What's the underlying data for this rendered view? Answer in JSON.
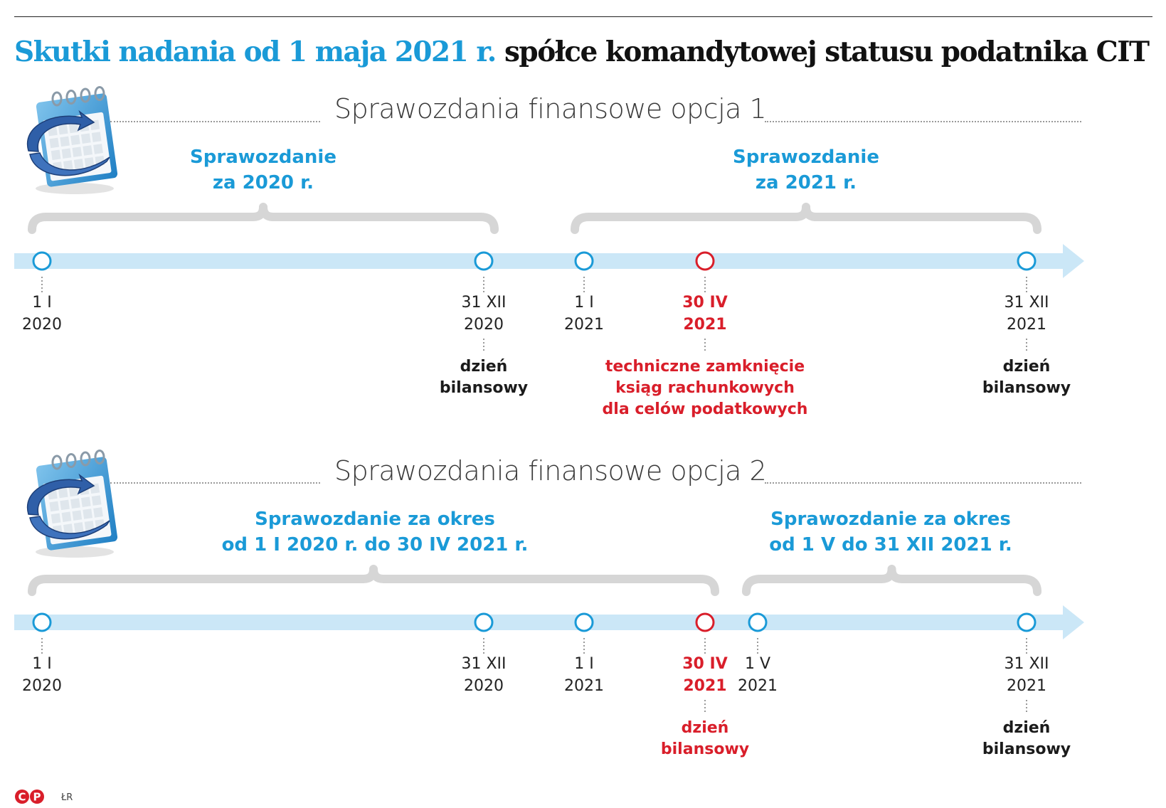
{
  "title": {
    "blue": "Skutki nadania od 1 maja 2021 r.",
    "black": "spółce komandytowej  statusu podatnika CIT"
  },
  "colors": {
    "accent_blue": "#1a9ad7",
    "timeline_blue": "#cbe7f7",
    "brace_grey": "#d6d6d6",
    "highlight_red": "#d91e2a"
  },
  "icons": [
    "calendar-icon"
  ],
  "sections": [
    {
      "title": "Sprawozdania finansowe opcja 1",
      "reports": [
        {
          "line1": "Sprawozdanie",
          "line2": "za 2020 r."
        },
        {
          "line1": "Sprawozdanie",
          "line2": "za 2021 r."
        }
      ],
      "points": [
        {
          "line1": "1 I",
          "line2": "2020",
          "note1": "",
          "note2": "",
          "note3": "",
          "color": "blue"
        },
        {
          "line1": "31 XII",
          "line2": "2020",
          "note1": "dzień",
          "note2": "bilansowy",
          "note3": "",
          "color": "blue"
        },
        {
          "line1": "1 I",
          "line2": "2021",
          "note1": "",
          "note2": "",
          "note3": "",
          "color": "blue"
        },
        {
          "line1": "30 IV",
          "line2": "2021",
          "note1": "techniczne zamknięcie",
          "note2": "ksiąg rachunkowych",
          "note3": "dla celów podatkowych",
          "color": "red"
        },
        {
          "line1": "31 XII",
          "line2": "2021",
          "note1": "dzień",
          "note2": "bilansowy",
          "note3": "",
          "color": "blue"
        }
      ]
    },
    {
      "title": "Sprawozdania finansowe opcja 2",
      "reports": [
        {
          "line1": "Sprawozdanie za okres",
          "line2": "od 1 I 2020 r. do 30 IV 2021 r."
        },
        {
          "line1": "Sprawozdanie za okres",
          "line2": "od 1 V do 31 XII 2021 r."
        }
      ],
      "points": [
        {
          "line1": "1 I",
          "line2": "2020",
          "note1": "",
          "note2": "",
          "note3": "",
          "color": "blue"
        },
        {
          "line1": "31 XII",
          "line2": "2020",
          "note1": "",
          "note2": "",
          "note3": "",
          "color": "blue"
        },
        {
          "line1": "1 I",
          "line2": "2021",
          "note1": "",
          "note2": "",
          "note3": "",
          "color": "blue"
        },
        {
          "line1": "30 IV",
          "line2": "2021",
          "note1": "dzień",
          "note2": "bilansowy",
          "note3": "",
          "color": "red"
        },
        {
          "line1": "1 V",
          "line2": "2021",
          "note1": "",
          "note2": "",
          "note3": "",
          "color": "blue"
        },
        {
          "line1": "31 XII",
          "line2": "2021",
          "note1": "dzień",
          "note2": "bilansowy",
          "note3": "",
          "color": "blue"
        }
      ]
    }
  ],
  "footer": {
    "logo_text": "©P",
    "credit": "ŁR"
  }
}
